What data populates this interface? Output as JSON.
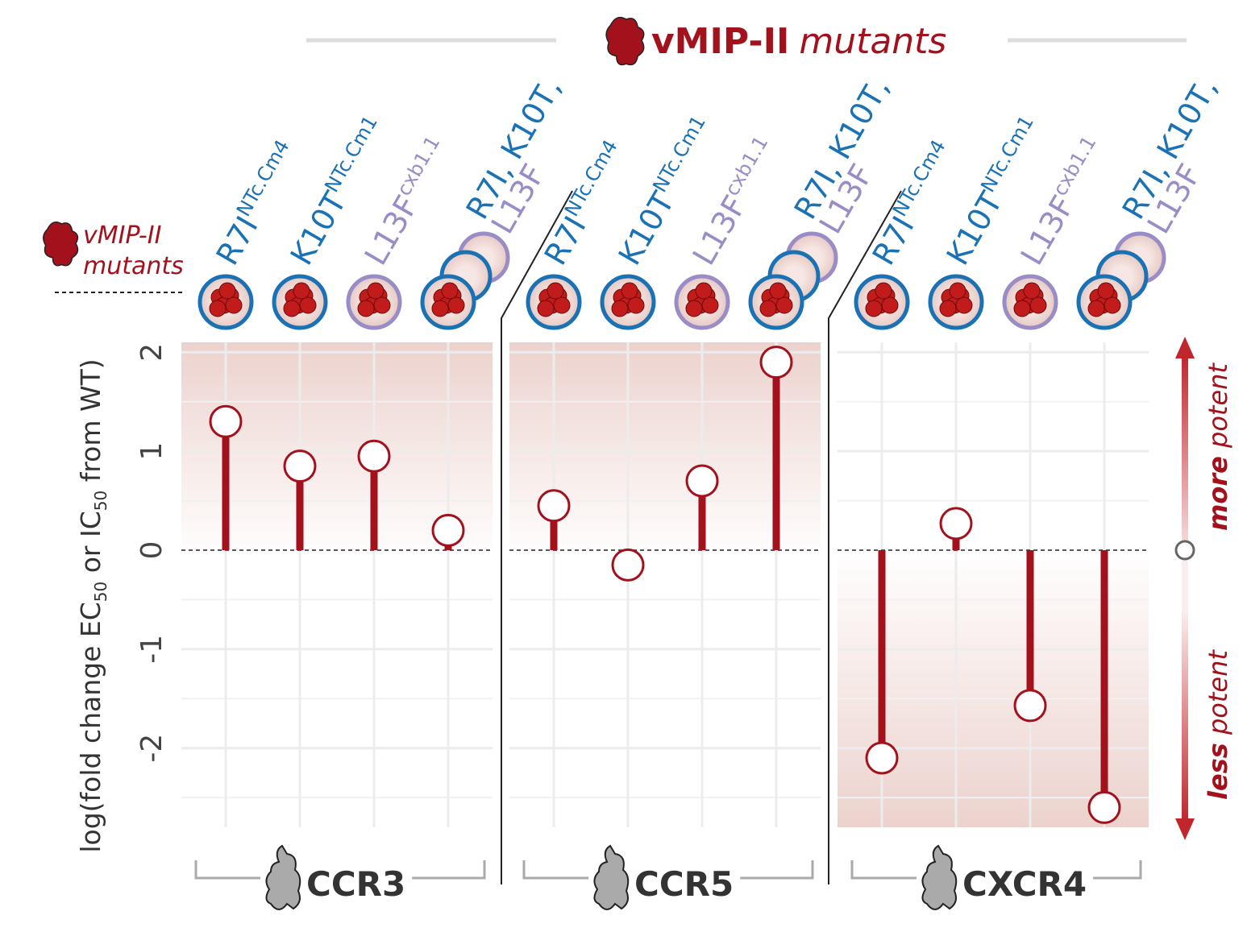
{
  "chart_data": {
    "type": "lollipop",
    "title": "vMIP-II",
    "title_italic": "mutants",
    "row_label": [
      "vMIP-II",
      "mutants"
    ],
    "ylabel": [
      "log(fold change EC",
      "50",
      " or IC",
      "50",
      " from WT)"
    ],
    "annotation_top": [
      "more",
      " potent"
    ],
    "annotation_bottom": [
      "less",
      " potent"
    ],
    "categories": [
      {
        "label": "R7I",
        "sup": "NTc.Cm4",
        "color": "#1a72b5"
      },
      {
        "label": "K10T",
        "sup": "NTc.Cm1",
        "color": "#1a72b5"
      },
      {
        "label": "L13F",
        "sup": "cxb1.1",
        "color": "#9a8cc6"
      },
      {
        "label": "R7I, K10T,",
        "label2": "L13F",
        "color": "#1a72b5",
        "color2": "#9a8cc6"
      }
    ],
    "panels": [
      {
        "name": "CCR3",
        "values": [
          1.3,
          0.85,
          0.95,
          0.2
        ],
        "shade": "positive"
      },
      {
        "name": "CCR5",
        "values": [
          0.45,
          -0.15,
          0.7,
          1.9
        ],
        "shade": "positive"
      },
      {
        "name": "CXCR4",
        "values": [
          -2.1,
          0.27,
          -1.57,
          -2.6
        ],
        "shade": "negative"
      }
    ],
    "color": "#a3121c",
    "ylim": [
      -2.8,
      2.1
    ],
    "yticks": [
      -2,
      -1,
      0,
      1,
      2
    ],
    "yminorticks": [
      -2.5,
      -1.5,
      -0.5,
      0.5,
      1.5
    ],
    "grid": true
  }
}
